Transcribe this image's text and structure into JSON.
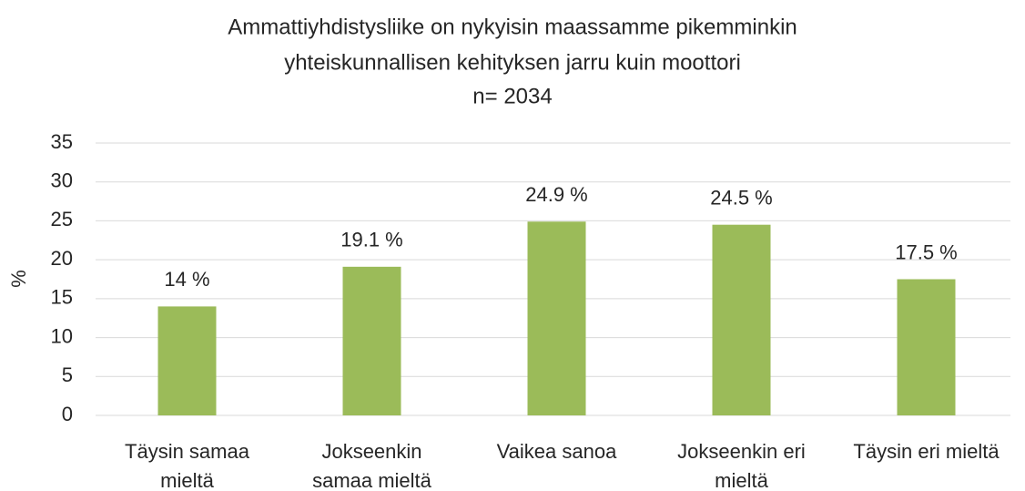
{
  "chart_data": {
    "type": "bar",
    "title": [
      "Ammattiyhdistysliike on nykyisin maassamme pikemminkin",
      "yhteiskunnallisen kehityksen jarru kuin moottori"
    ],
    "subtitle": "n= 2034",
    "y_label": "%",
    "categories": [
      [
        "Täysin samaa",
        "mieltä"
      ],
      [
        "Jokseenkin",
        "samaa mieltä"
      ],
      [
        "Vaikea sanoa"
      ],
      [
        "Jokseenkin eri",
        "mieltä"
      ],
      [
        "Täysin eri mieltä"
      ]
    ],
    "values": [
      14,
      19.1,
      24.9,
      24.5,
      17.5
    ],
    "value_labels": [
      "14 %",
      "19.1 %",
      "24.9 %",
      "24.5 %",
      "17.5 %"
    ],
    "color": "#9bbb59",
    "ylim": [
      0,
      35
    ],
    "yticks": [
      0,
      5,
      10,
      15,
      20,
      25,
      30,
      35
    ],
    "grid": true
  }
}
